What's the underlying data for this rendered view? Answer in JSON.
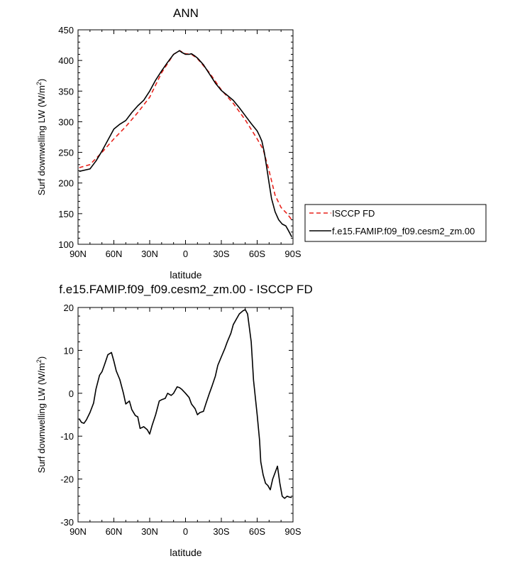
{
  "chart_data": [
    {
      "type": "line",
      "title": "ANN",
      "xlabel": "latitude",
      "ylabel": "Surf downwelling LW (W/m",
      "ylabel_sup": "2",
      "ylabel_close": ")",
      "xlim": [
        -90,
        90
      ],
      "ylim": [
        100,
        450
      ],
      "x_ticks": [
        -90,
        -60,
        -30,
        0,
        30,
        60,
        90
      ],
      "x_tick_labels": [
        "90N",
        "60N",
        "30N",
        "0",
        "30S",
        "60S",
        "90S"
      ],
      "y_ticks": [
        100,
        150,
        200,
        250,
        300,
        350,
        400,
        450
      ],
      "y_tick_labels": [
        "100",
        "150",
        "200",
        "250",
        "300",
        "350",
        "400",
        "450"
      ],
      "grid": false,
      "legend": "right, outside plot",
      "series": [
        {
          "name": "ISCCP FD",
          "color": "#e8221b",
          "dash": true,
          "x": [
            -89,
            -80,
            -70,
            -60,
            -50,
            -40,
            -30,
            -20,
            -10,
            -5,
            0,
            5,
            10,
            20,
            30,
            40,
            50,
            60,
            65,
            70,
            75,
            80,
            85,
            89
          ],
          "y": [
            225,
            230,
            250,
            272,
            292,
            315,
            340,
            380,
            410,
            416,
            411,
            410,
            403,
            380,
            352,
            330,
            303,
            272,
            255,
            220,
            180,
            160,
            150,
            140
          ]
        },
        {
          "name": "f.e15.FAMIP.f09_f09.cesm2_zm.00",
          "color": "#000000",
          "dash": false,
          "x": [
            -89,
            -80,
            -75,
            -70,
            -65,
            -60,
            -55,
            -50,
            -45,
            -40,
            -35,
            -30,
            -25,
            -20,
            -15,
            -10,
            -5,
            -3,
            0,
            3,
            5,
            8,
            10,
            15,
            20,
            25,
            30,
            35,
            40,
            45,
            50,
            55,
            60,
            62,
            64,
            66,
            68,
            70,
            72,
            75,
            78,
            81,
            84,
            86,
            89
          ],
          "y": [
            219,
            223,
            236,
            252,
            270,
            288,
            296,
            302,
            315,
            326,
            335,
            350,
            368,
            383,
            397,
            410,
            416,
            413,
            410,
            410,
            411,
            407,
            404,
            393,
            378,
            363,
            351,
            343,
            335,
            323,
            310,
            297,
            285,
            277,
            268,
            250,
            225,
            200,
            175,
            153,
            140,
            133,
            130,
            123,
            112
          ]
        }
      ]
    },
    {
      "type": "line",
      "title": "f.e15.FAMIP.f09_f09.cesm2_zm.00 - ISCCP FD",
      "xlabel": "latitude",
      "ylabel": "Surf downwelling LW (W/m",
      "ylabel_sup": "2",
      "ylabel_close": ")",
      "xlim": [
        -90,
        90
      ],
      "ylim": [
        -30,
        20
      ],
      "x_ticks": [
        -90,
        -60,
        -30,
        0,
        30,
        60,
        90
      ],
      "x_tick_labels": [
        "90N",
        "60N",
        "30N",
        "0",
        "30S",
        "60S",
        "90S"
      ],
      "y_ticks": [
        -30,
        -20,
        -10,
        0,
        10,
        20
      ],
      "y_tick_labels": [
        "-30",
        "-20",
        "-10",
        "0",
        "10",
        "20"
      ],
      "grid": false,
      "series": [
        {
          "color": "#000000",
          "dash": false,
          "x": [
            -89,
            -87,
            -85,
            -83,
            -80,
            -77,
            -75,
            -72,
            -70,
            -68,
            -65,
            -62,
            -60,
            -58,
            -55,
            -52,
            -50,
            -47,
            -45,
            -42,
            -40,
            -38,
            -35,
            -32,
            -30,
            -28,
            -25,
            -22,
            -20,
            -17,
            -15,
            -12,
            -10,
            -7,
            -5,
            -3,
            0,
            3,
            5,
            8,
            10,
            12,
            15,
            17,
            20,
            22,
            25,
            27,
            30,
            33,
            35,
            38,
            40,
            43,
            45,
            48,
            50,
            52,
            55,
            57,
            60,
            62,
            63,
            65,
            67,
            69,
            71,
            73,
            75,
            77,
            79,
            81,
            83,
            85,
            87,
            89
          ],
          "y": [
            -6,
            -6.8,
            -7,
            -6.2,
            -4.5,
            -2.3,
            1,
            4.2,
            5,
            6.5,
            9,
            9.5,
            7.5,
            5.2,
            3.2,
            0,
            -2.5,
            -1.8,
            -3.8,
            -5.2,
            -5.5,
            -8.2,
            -7.8,
            -8.5,
            -9.5,
            -7.5,
            -5,
            -1.8,
            -1.5,
            -1.2,
            0,
            -0.5,
            0,
            1.5,
            1.3,
            0.9,
            0,
            -1,
            -2.5,
            -3.6,
            -5,
            -4.5,
            -4.2,
            -2.5,
            0,
            1.5,
            4,
            6.5,
            8.5,
            10.5,
            12,
            14,
            16,
            17.5,
            18.5,
            19.2,
            19.5,
            18.5,
            12,
            3,
            -5,
            -11,
            -16,
            -19,
            -21,
            -21.5,
            -22.5,
            -20,
            -18.5,
            -17,
            -21,
            -24,
            -24.5,
            -24,
            -24.2,
            -24.3
          ]
        }
      ]
    }
  ]
}
